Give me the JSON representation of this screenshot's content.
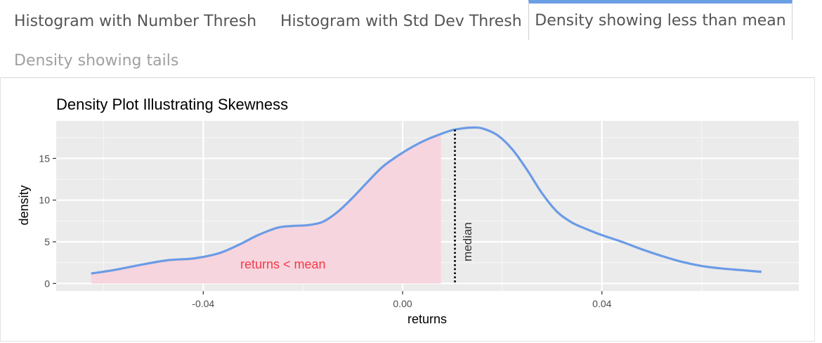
{
  "tabs": [
    {
      "label": "Histogram with Number Thresh",
      "active": false
    },
    {
      "label": "Histogram with Std Dev Thresh",
      "active": false
    },
    {
      "label": "Density showing less than mean",
      "active": true
    },
    {
      "label": "Density showing tails",
      "active": false
    }
  ],
  "colors": {
    "accent": "#6a9fe3",
    "curve": "#6b9be6",
    "fill": "#f7d5de",
    "annotation": "#f2394b",
    "panel_bg": "#ebebeb"
  },
  "chart_data": {
    "type": "area",
    "title": "Density Plot Illustrating Skewness",
    "xlabel": "returns",
    "ylabel": "density",
    "xlim": [
      -0.0695,
      0.0795
    ],
    "ylim": [
      -0.9,
      19.5
    ],
    "x_ticks": [
      -0.04,
      0.0,
      0.04
    ],
    "x_tick_labels": [
      "-0.04",
      "0.00",
      "0.04"
    ],
    "y_ticks": [
      0,
      5,
      10,
      15
    ],
    "y_tick_labels": [
      "0",
      "5",
      "10",
      "15"
    ],
    "grid": true,
    "series": [
      {
        "x": [
          -0.0625,
          -0.058,
          -0.052,
          -0.047,
          -0.042,
          -0.037,
          -0.033,
          -0.029,
          -0.025,
          -0.022,
          -0.019,
          -0.016,
          -0.013,
          -0.01,
          -0.007,
          -0.004,
          -0.001,
          0.002,
          0.005,
          0.008,
          0.01,
          0.012,
          0.014,
          0.016,
          0.019,
          0.022,
          0.025,
          0.028,
          0.031,
          0.034,
          0.037,
          0.04,
          0.044,
          0.048,
          0.052,
          0.056,
          0.06,
          0.064,
          0.068,
          0.072
        ],
        "y": [
          1.2,
          1.6,
          2.3,
          2.8,
          3.0,
          3.6,
          4.6,
          5.8,
          6.7,
          6.9,
          7.0,
          7.4,
          8.6,
          10.3,
          12.2,
          14.0,
          15.3,
          16.4,
          17.3,
          18.0,
          18.4,
          18.6,
          18.7,
          18.6,
          17.8,
          16.1,
          13.6,
          10.8,
          8.6,
          7.3,
          6.5,
          5.8,
          5.0,
          4.1,
          3.3,
          2.6,
          2.1,
          1.8,
          1.6,
          1.4
        ]
      }
    ],
    "shaded_below_x": 0.0077,
    "median_x": 0.0105,
    "annotations": [
      {
        "text": "returns < mean",
        "x": -0.024,
        "y": 1.8
      },
      {
        "text": "median",
        "x": 0.0138,
        "y": 5.0,
        "rotation": -90
      }
    ]
  }
}
